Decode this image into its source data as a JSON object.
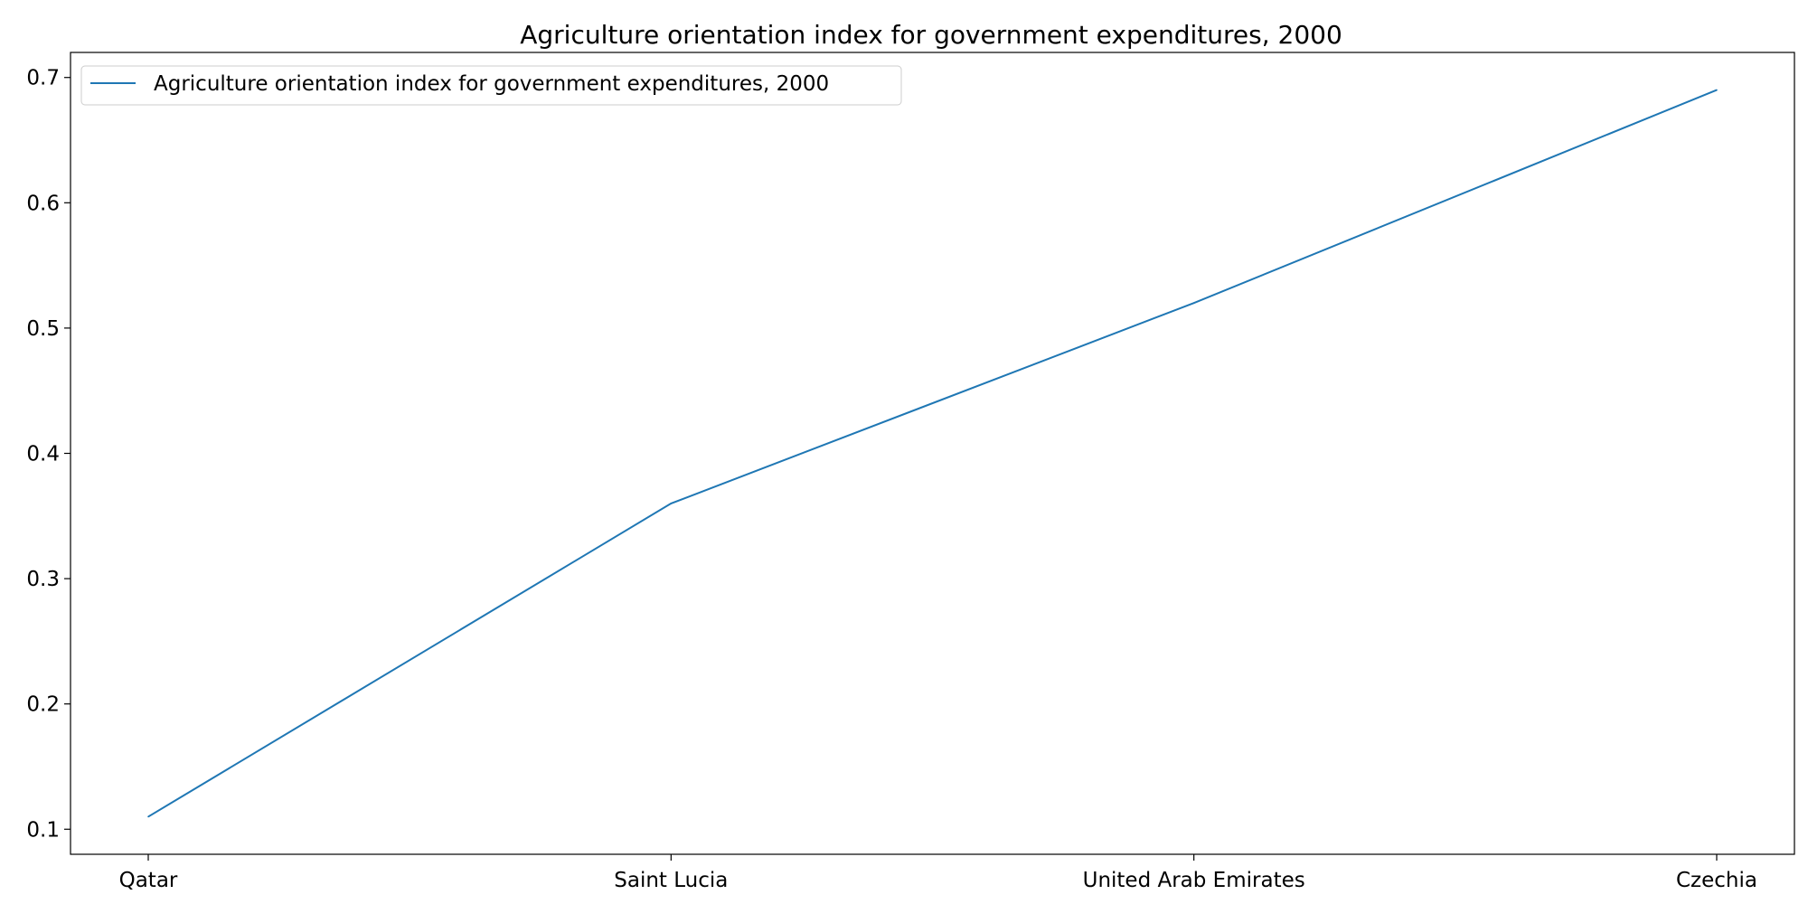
{
  "chart_data": {
    "type": "line",
    "title": "Agriculture orientation index for government expenditures, 2000",
    "xlabel": "",
    "ylabel": "",
    "categories": [
      "Qatar",
      "Saint Lucia",
      "United Arab Emirates",
      "Czechia"
    ],
    "series": [
      {
        "name": "Agriculture orientation index for government expenditures, 2000",
        "values": [
          0.11,
          0.36,
          0.52,
          0.69
        ],
        "color": "#1f77b4"
      }
    ],
    "ylim": [
      0.08,
      0.72
    ],
    "yticks": [
      "0.1",
      "0.2",
      "0.3",
      "0.4",
      "0.5",
      "0.6",
      "0.7"
    ],
    "grid": false,
    "legend": "top-left"
  }
}
